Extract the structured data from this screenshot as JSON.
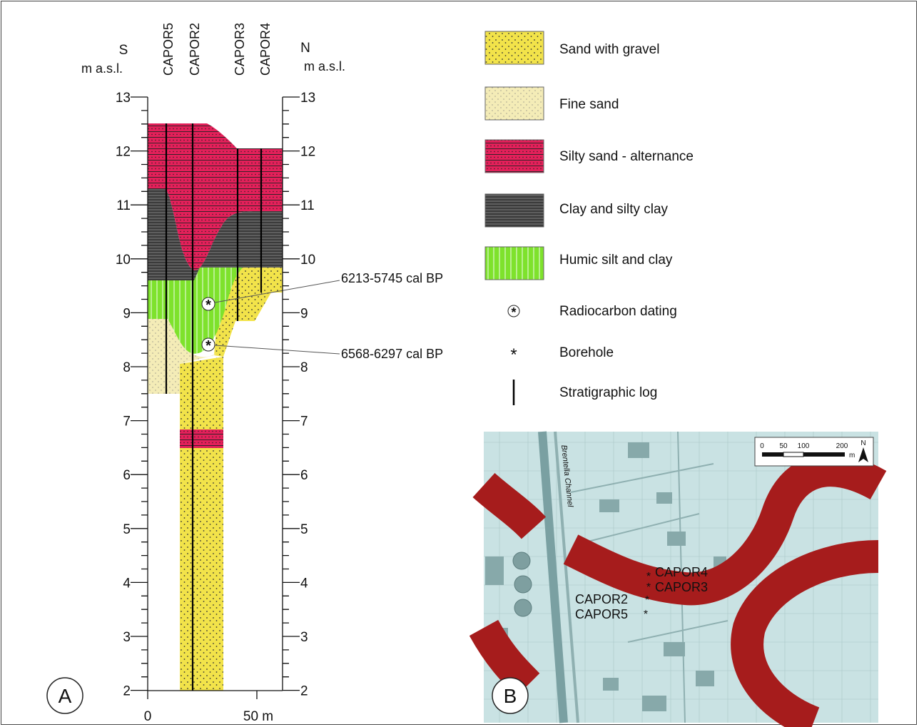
{
  "panel_a": {
    "header": {
      "left_dir": "S",
      "right_dir": "N",
      "left_unit": "m a.s.l.",
      "right_unit": "m a.s.l.",
      "boreholes": [
        "CAPOR5",
        "CAPOR2",
        "CAPOR3",
        "CAPOR4"
      ]
    },
    "y_axis_ticks": [
      "13",
      "12",
      "11",
      "10",
      "9",
      "8",
      "7",
      "6",
      "5",
      "4",
      "3",
      "2"
    ],
    "x_axis": {
      "start": "0",
      "end": "50 m"
    },
    "dates": [
      "6213-5745 cal BP",
      "6568-6297 cal BP"
    ],
    "label": "A"
  },
  "legend": {
    "items": [
      {
        "label": "Sand with gravel",
        "color": "#f2e34a"
      },
      {
        "label": "Fine sand",
        "color": "#f4ecb7"
      },
      {
        "label": "Silty sand - alternance",
        "color": "#e4205a"
      },
      {
        "label": "Clay and silty clay",
        "color": "#3b3b3b"
      },
      {
        "label": "Humic silt and clay",
        "color": "#7ee22c"
      },
      {
        "label": "Radiocarbon dating",
        "icon": "circled-asterisk-icon"
      },
      {
        "label": "Borehole",
        "icon": "asterisk-icon"
      },
      {
        "label": "Stratigraphic log",
        "icon": "vertical-line-icon"
      }
    ]
  },
  "panel_b": {
    "label": "B",
    "channel_label": "Brentella Channel",
    "scale_ticks": [
      "0",
      "50",
      "100",
      "200"
    ],
    "scale_unit": "m",
    "north": "N",
    "boreholes": [
      "CAPOR4",
      "CAPOR3",
      "CAPOR2",
      "CAPOR5"
    ],
    "colors": {
      "map_bg": "#c9e2e3",
      "paleochannel": "#a61c1c"
    }
  }
}
